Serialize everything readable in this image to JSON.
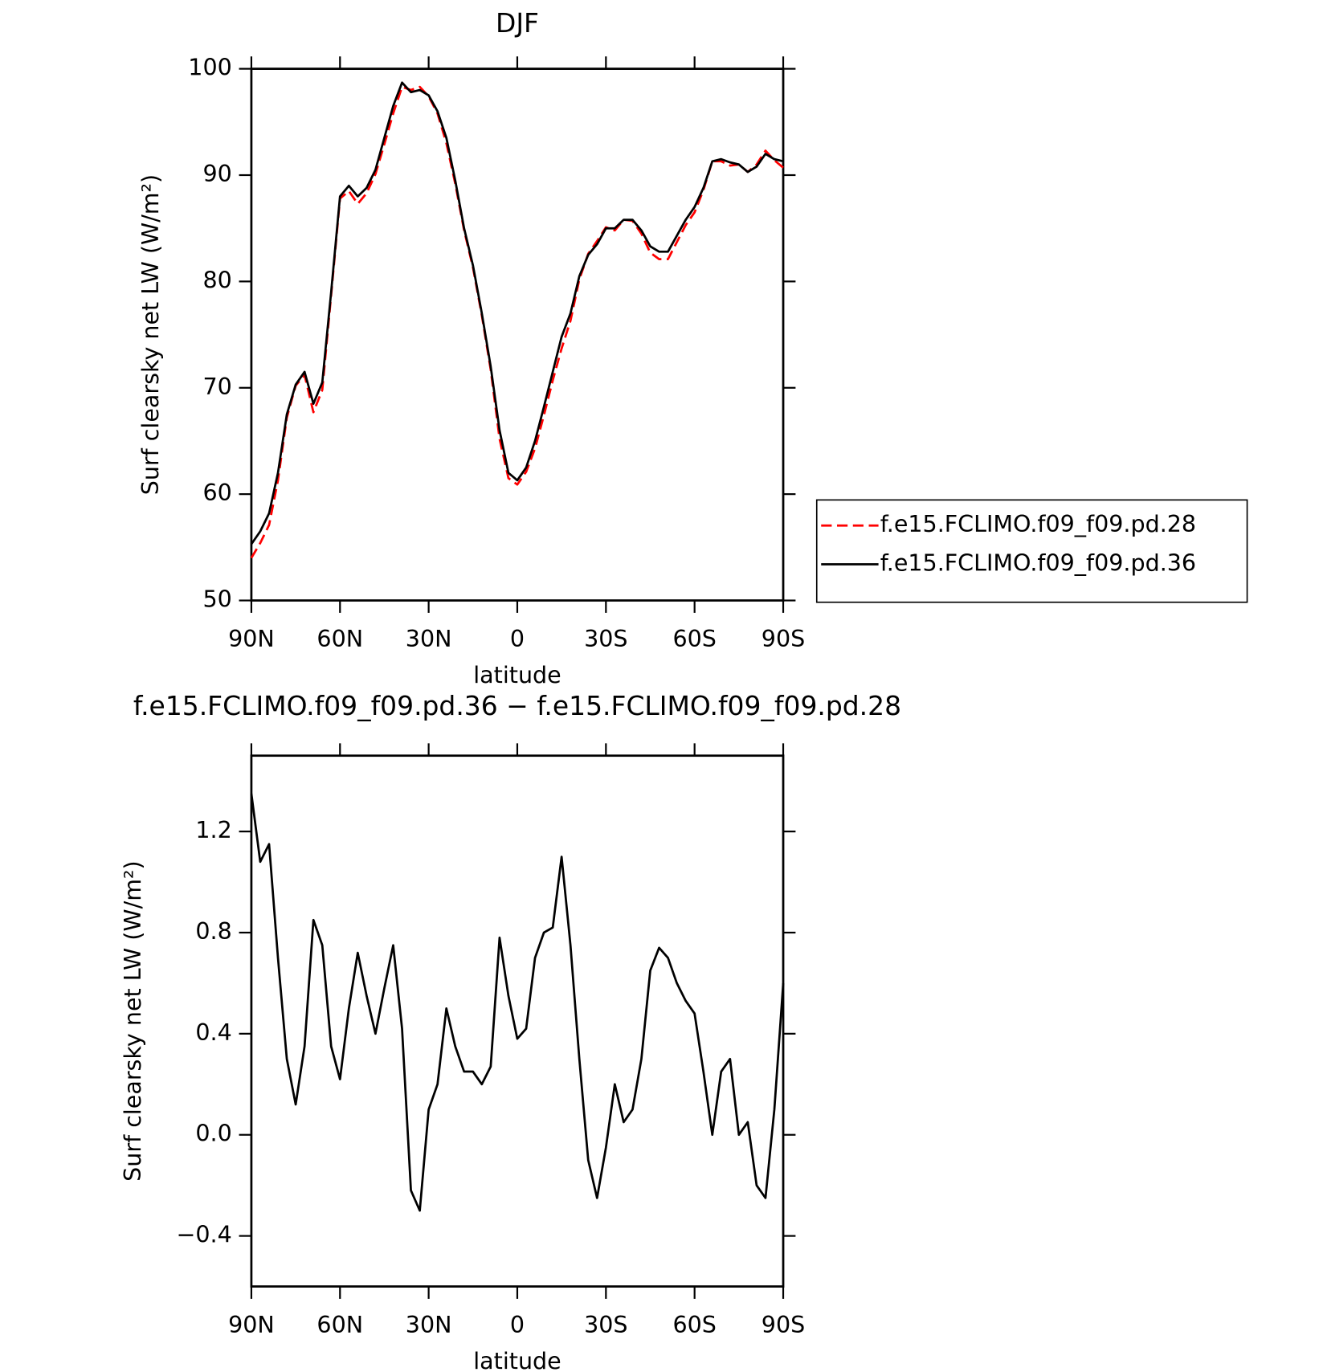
{
  "chart_data": [
    {
      "type": "line",
      "title": "DJF",
      "xlabel": "latitude",
      "ylabel": "Surf clearsky net LW (W/m²)",
      "x": [
        90,
        87,
        84,
        81,
        78,
        75,
        72,
        69,
        66,
        63,
        60,
        57,
        54,
        51,
        48,
        45,
        42,
        39,
        36,
        33,
        30,
        27,
        24,
        21,
        18,
        15,
        12,
        9,
        6,
        3,
        0,
        -3,
        -6,
        -9,
        -12,
        -15,
        -18,
        -21,
        -24,
        -27,
        -30,
        -33,
        -36,
        -39,
        -42,
        -45,
        -48,
        -51,
        -54,
        -57,
        -60,
        -63,
        -66,
        -69,
        -72,
        -75,
        -78,
        -81,
        -84,
        -87,
        -90
      ],
      "xlim": [
        90,
        -90
      ],
      "xticks": [
        {
          "value": 90,
          "label": "90N"
        },
        {
          "value": 60,
          "label": "60N"
        },
        {
          "value": 30,
          "label": "30N"
        },
        0,
        {
          "value": -30,
          "label": "30S"
        },
        {
          "value": -60,
          "label": "60S"
        },
        {
          "value": -90,
          "label": "90S"
        }
      ],
      "ylim": [
        50,
        100
      ],
      "yticks": [
        50,
        60,
        70,
        80,
        90,
        100
      ],
      "legend": "outside-right",
      "series": [
        {
          "name": "f.e15.FCLIMO.f09_f09.pd.28",
          "color": "#ff0000",
          "dash": true,
          "values": [
            54.0,
            55.4,
            57.1,
            61.3,
            67.2,
            70.2,
            71.2,
            67.7,
            69.8,
            78.7,
            87.8,
            88.5,
            87.3,
            88.3,
            90.1,
            92.9,
            95.8,
            98.3,
            98.0,
            98.3,
            97.4,
            95.8,
            93.0,
            89.2,
            84.8,
            81.3,
            76.8,
            71.7,
            65.2,
            61.5,
            60.9,
            62.1,
            64.3,
            67.4,
            70.7,
            73.7,
            76.3,
            80.2,
            82.6,
            83.8,
            85.1,
            84.8,
            85.8,
            85.7,
            84.5,
            82.7,
            82.1,
            82.1,
            83.7,
            85.3,
            86.5,
            88.6,
            91.3,
            91.3,
            90.9,
            91.0,
            90.3,
            91.0,
            92.3,
            91.4,
            90.7
          ]
        },
        {
          "name": "f.e15.FCLIMO.f09_f09.pd.36",
          "color": "#000000",
          "dash": false,
          "values": [
            55.3,
            56.5,
            58.2,
            62.0,
            67.5,
            70.3,
            71.5,
            68.5,
            70.5,
            79.0,
            88.0,
            89.0,
            88.0,
            88.8,
            90.5,
            93.5,
            96.5,
            98.7,
            97.8,
            98.0,
            97.5,
            96.0,
            93.5,
            89.5,
            85.0,
            81.5,
            77.0,
            72.0,
            66.0,
            62.0,
            61.3,
            62.5,
            65.0,
            68.2,
            71.5,
            74.8,
            77.0,
            80.5,
            82.5,
            83.5,
            85.0,
            85.0,
            85.8,
            85.8,
            84.8,
            83.3,
            82.8,
            82.8,
            84.3,
            85.8,
            87.0,
            88.8,
            91.3,
            91.5,
            91.2,
            91.0,
            90.3,
            90.8,
            92.0,
            91.5,
            91.3
          ]
        }
      ]
    },
    {
      "type": "line",
      "title": "f.e15.FCLIMO.f09_f09.pd.36 − f.e15.FCLIMO.f09_f09.pd.28",
      "xlabel": "latitude",
      "ylabel": "Surf clearsky net LW (W/m²)",
      "x": [
        90,
        87,
        84,
        81,
        78,
        75,
        72,
        69,
        66,
        63,
        60,
        57,
        54,
        51,
        48,
        45,
        42,
        39,
        36,
        33,
        30,
        27,
        24,
        21,
        18,
        15,
        12,
        9,
        6,
        3,
        0,
        -3,
        -6,
        -9,
        -12,
        -15,
        -18,
        -21,
        -24,
        -27,
        -30,
        -33,
        -36,
        -39,
        -42,
        -45,
        -48,
        -51,
        -54,
        -57,
        -60,
        -63,
        -66,
        -69,
        -72,
        -75,
        -78,
        -81,
        -84,
        -87,
        -90
      ],
      "xlim": [
        90,
        -90
      ],
      "xticks": [
        {
          "value": 90,
          "label": "90N"
        },
        {
          "value": 60,
          "label": "60N"
        },
        {
          "value": 30,
          "label": "30N"
        },
        0,
        {
          "value": -30,
          "label": "30S"
        },
        {
          "value": -60,
          "label": "60S"
        },
        {
          "value": -90,
          "label": "90S"
        }
      ],
      "ylim": [
        -0.6,
        1.5
      ],
      "yticks": [
        {
          "value": -0.4,
          "label": "−0.4"
        },
        {
          "value": 0,
          "label": "0.0"
        },
        0.4,
        0.8,
        1.2
      ],
      "series": [
        {
          "color": "#000000",
          "dash": false,
          "values": [
            1.35,
            1.08,
            1.15,
            0.7,
            0.3,
            0.12,
            0.35,
            0.85,
            0.75,
            0.35,
            0.22,
            0.5,
            0.72,
            0.55,
            0.4,
            0.58,
            0.75,
            0.42,
            -0.22,
            -0.3,
            0.1,
            0.2,
            0.5,
            0.35,
            0.25,
            0.25,
            0.2,
            0.27,
            0.78,
            0.55,
            0.38,
            0.42,
            0.7,
            0.8,
            0.82,
            1.1,
            0.75,
            0.3,
            -0.1,
            -0.25,
            -0.05,
            0.2,
            0.05,
            0.1,
            0.3,
            0.65,
            0.74,
            0.7,
            0.6,
            0.53,
            0.48,
            0.25,
            0.0,
            0.25,
            0.3,
            0.0,
            0.05,
            -0.2,
            -0.25,
            0.1,
            0.6
          ]
        }
      ]
    }
  ]
}
